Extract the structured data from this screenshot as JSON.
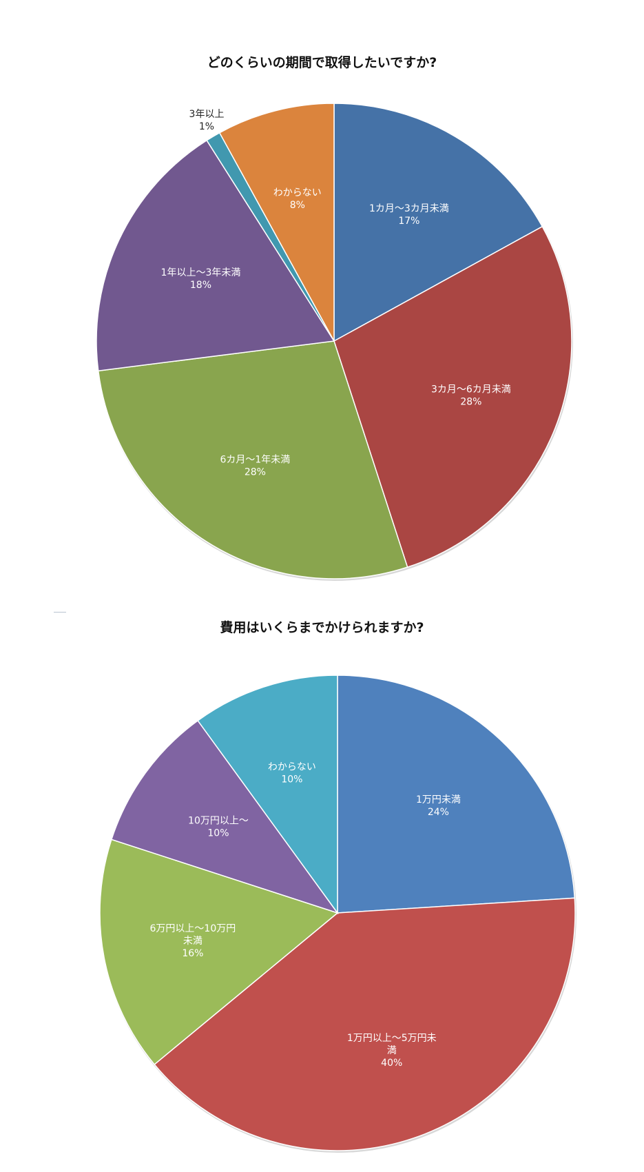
{
  "chart_data": [
    {
      "type": "pie",
      "title": "どのくらいの期間で取得したいですか?",
      "slices": [
        {
          "label": "1カ月～3カ月未満",
          "value": 17,
          "display": "17%",
          "color": "#4572a7"
        },
        {
          "label": "3カ月～6カ月未満",
          "value": 28,
          "display": "28%",
          "color": "#aa4643"
        },
        {
          "label": "6カ月～1年未満",
          "value": 28,
          "display": "28%",
          "color": "#89a54e"
        },
        {
          "label": "1年以上～3年未満",
          "value": 18,
          "display": "18%",
          "color": "#71588f"
        },
        {
          "label": "3年以上",
          "value": 1,
          "display": "1%",
          "color": "#4198af"
        },
        {
          "label": "わからない",
          "value": 8,
          "display": "8%",
          "color": "#db843d"
        }
      ]
    },
    {
      "type": "pie",
      "title": "費用はいくらまでかけられますか?",
      "slices": [
        {
          "label": "1万円未満",
          "value": 24,
          "display": "24%",
          "color": "#4f81bd"
        },
        {
          "label": "1万円以上～5万円未満",
          "value": 40,
          "display": "40%",
          "color": "#c0504d"
        },
        {
          "label": "6万円以上～10万円未満",
          "value": 16,
          "display": "16%",
          "color": "#9bbb59"
        },
        {
          "label": "10万円以上～",
          "value": 10,
          "display": "10%",
          "color": "#8064a2"
        },
        {
          "label": "わからない",
          "value": 10,
          "display": "10%",
          "color": "#4bacc6"
        }
      ]
    }
  ]
}
